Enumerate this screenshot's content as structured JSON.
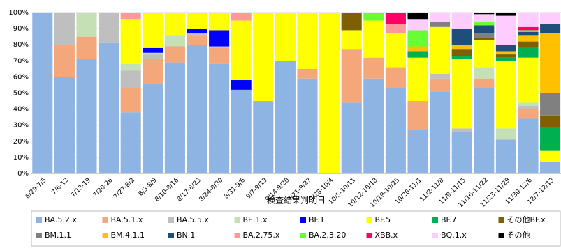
{
  "chart_data": {
    "type": "stacked_bar",
    "x_label": "検査結果判明日",
    "categories": [
      "6/29-7/5",
      "7/6-12",
      "7/13-19",
      "7/20-26",
      "7/27-8/2",
      "8/3-8/9",
      "8/10-8/16",
      "8/17-8/23",
      "8/24-8/30",
      "8/31-9/6",
      "9/7-9/13",
      "9/14-9/20",
      "9/21-9/27",
      "9/28-10/4",
      "10/5-10/11",
      "10/12-10/18",
      "10/19-10/25",
      "10/26-11/1",
      "11/2-11/8",
      "11/9-11/15",
      "11/16-11/22",
      "11/23-11/29",
      "11/30-12/6",
      "12/7-12/13"
    ],
    "ylim": [
      0,
      100
    ],
    "yticks": [
      {
        "value": 0,
        "label": "0%"
      },
      {
        "value": 10,
        "label": "10%"
      },
      {
        "value": 20,
        "label": "20%"
      },
      {
        "value": 30,
        "label": "30%"
      },
      {
        "value": 40,
        "label": "40%"
      },
      {
        "value": 50,
        "label": "50%"
      },
      {
        "value": 60,
        "label": "60%"
      },
      {
        "value": 70,
        "label": "70%"
      },
      {
        "value": 80,
        "label": "80%"
      },
      {
        "value": 90,
        "label": "90%"
      },
      {
        "value": 100,
        "label": "100%"
      }
    ],
    "grid": true,
    "legend": "bottom",
    "series": [
      {
        "name": "BA.5.2.x",
        "color": "#8db4e2",
        "values": [
          100,
          60,
          71,
          81,
          38,
          56,
          69,
          80,
          68,
          52,
          45,
          70,
          59,
          0,
          44,
          59,
          53,
          27,
          51,
          26,
          53,
          21,
          34,
          7
        ]
      },
      {
        "name": "BA.5.1.x",
        "color": "#f4a77a",
        "values": [
          0,
          20,
          14,
          0,
          15,
          15,
          10,
          6,
          10,
          0,
          0,
          0,
          6,
          0,
          33,
          13,
          13,
          18,
          8,
          0,
          6,
          0,
          6,
          0
        ]
      },
      {
        "name": "BA.5.5.x",
        "color": "#bfbfbf",
        "values": [
          0,
          20,
          0,
          19,
          11,
          3,
          0,
          1,
          1,
          0,
          0,
          0,
          0,
          0,
          0,
          0,
          0,
          0,
          3,
          2,
          0,
          0,
          2,
          0
        ]
      },
      {
        "name": "BE.1.x",
        "color": "#c4e0b4",
        "values": [
          0,
          0,
          15,
          0,
          4,
          1,
          7,
          0,
          0,
          0,
          0,
          0,
          0,
          0,
          0,
          0,
          0,
          0,
          0,
          0,
          7,
          7,
          2,
          0
        ]
      },
      {
        "name": "BF.1",
        "color": "#0000ff",
        "values": [
          0,
          0,
          0,
          0,
          0,
          3,
          0,
          3,
          10,
          6,
          0,
          0,
          0,
          0,
          0,
          0,
          0,
          0,
          0,
          0,
          0,
          0,
          0,
          0
        ]
      },
      {
        "name": "BF.5",
        "color": "#ffff00",
        "values": [
          0,
          0,
          0,
          0,
          28,
          22,
          14,
          10,
          11,
          37,
          55,
          30,
          35,
          100,
          12,
          23,
          21,
          27,
          29,
          43,
          17,
          42,
          28,
          7
        ]
      },
      {
        "name": "BF.7",
        "color": "#00b050",
        "values": [
          0,
          0,
          0,
          0,
          0,
          0,
          0,
          0,
          0,
          0,
          0,
          0,
          0,
          0,
          0,
          0,
          0,
          4,
          0,
          2,
          0,
          2,
          6,
          15
        ]
      },
      {
        "name": "その他BF.x",
        "color": "#7f6000",
        "values": [
          0,
          0,
          0,
          0,
          0,
          0,
          0,
          0,
          0,
          0,
          0,
          0,
          0,
          0,
          11,
          0,
          0,
          0,
          0,
          4,
          1,
          2,
          4,
          7
        ]
      },
      {
        "name": "BM.1.1",
        "color": "#808080",
        "values": [
          0,
          0,
          0,
          0,
          0,
          0,
          0,
          0,
          0,
          0,
          0,
          0,
          0,
          0,
          0,
          0,
          0,
          0,
          3,
          0,
          3,
          0,
          0,
          14
        ]
      },
      {
        "name": "BM.4.1.1",
        "color": "#ffc000",
        "values": [
          0,
          0,
          0,
          0,
          0,
          0,
          0,
          0,
          0,
          0,
          0,
          0,
          0,
          0,
          0,
          0,
          0,
          3,
          0,
          3,
          0,
          2,
          4,
          37
        ]
      },
      {
        "name": "BN.1",
        "color": "#1f4e79",
        "values": [
          0,
          0,
          0,
          0,
          0,
          0,
          0,
          0,
          0,
          0,
          0,
          0,
          0,
          0,
          0,
          0,
          0,
          0,
          0,
          10,
          5,
          4,
          2,
          6
        ]
      },
      {
        "name": "BA.2.75.x",
        "color": "#ff9999",
        "values": [
          0,
          0,
          0,
          0,
          4,
          0,
          0,
          0,
          0,
          5,
          0,
          0,
          0,
          0,
          0,
          0,
          6,
          0,
          0,
          0,
          0,
          0,
          0,
          0
        ]
      },
      {
        "name": "BA.2.3.20",
        "color": "#66ff33",
        "values": [
          0,
          0,
          0,
          0,
          0,
          0,
          0,
          0,
          0,
          0,
          0,
          0,
          0,
          0,
          0,
          5,
          0,
          10,
          0,
          0,
          2,
          0,
          1,
          0
        ]
      },
      {
        "name": "XBB.x",
        "color": "#ff0066",
        "values": [
          0,
          0,
          0,
          0,
          0,
          0,
          0,
          0,
          0,
          0,
          0,
          0,
          0,
          0,
          0,
          0,
          7,
          0,
          0,
          0,
          0,
          0,
          2,
          0
        ]
      },
      {
        "name": "BQ.1.x",
        "color": "#ffccff",
        "values": [
          0,
          0,
          0,
          0,
          0,
          0,
          0,
          0,
          0,
          0,
          0,
          0,
          0,
          0,
          0,
          0,
          0,
          7,
          6,
          10,
          5,
          18,
          9,
          7
        ]
      },
      {
        "name": "その他",
        "color": "#000000",
        "values": [
          0,
          0,
          0,
          0,
          0,
          0,
          0,
          0,
          0,
          0,
          0,
          0,
          0,
          0,
          0,
          0,
          0,
          4,
          0,
          0,
          1,
          2,
          0,
          0
        ]
      }
    ]
  }
}
